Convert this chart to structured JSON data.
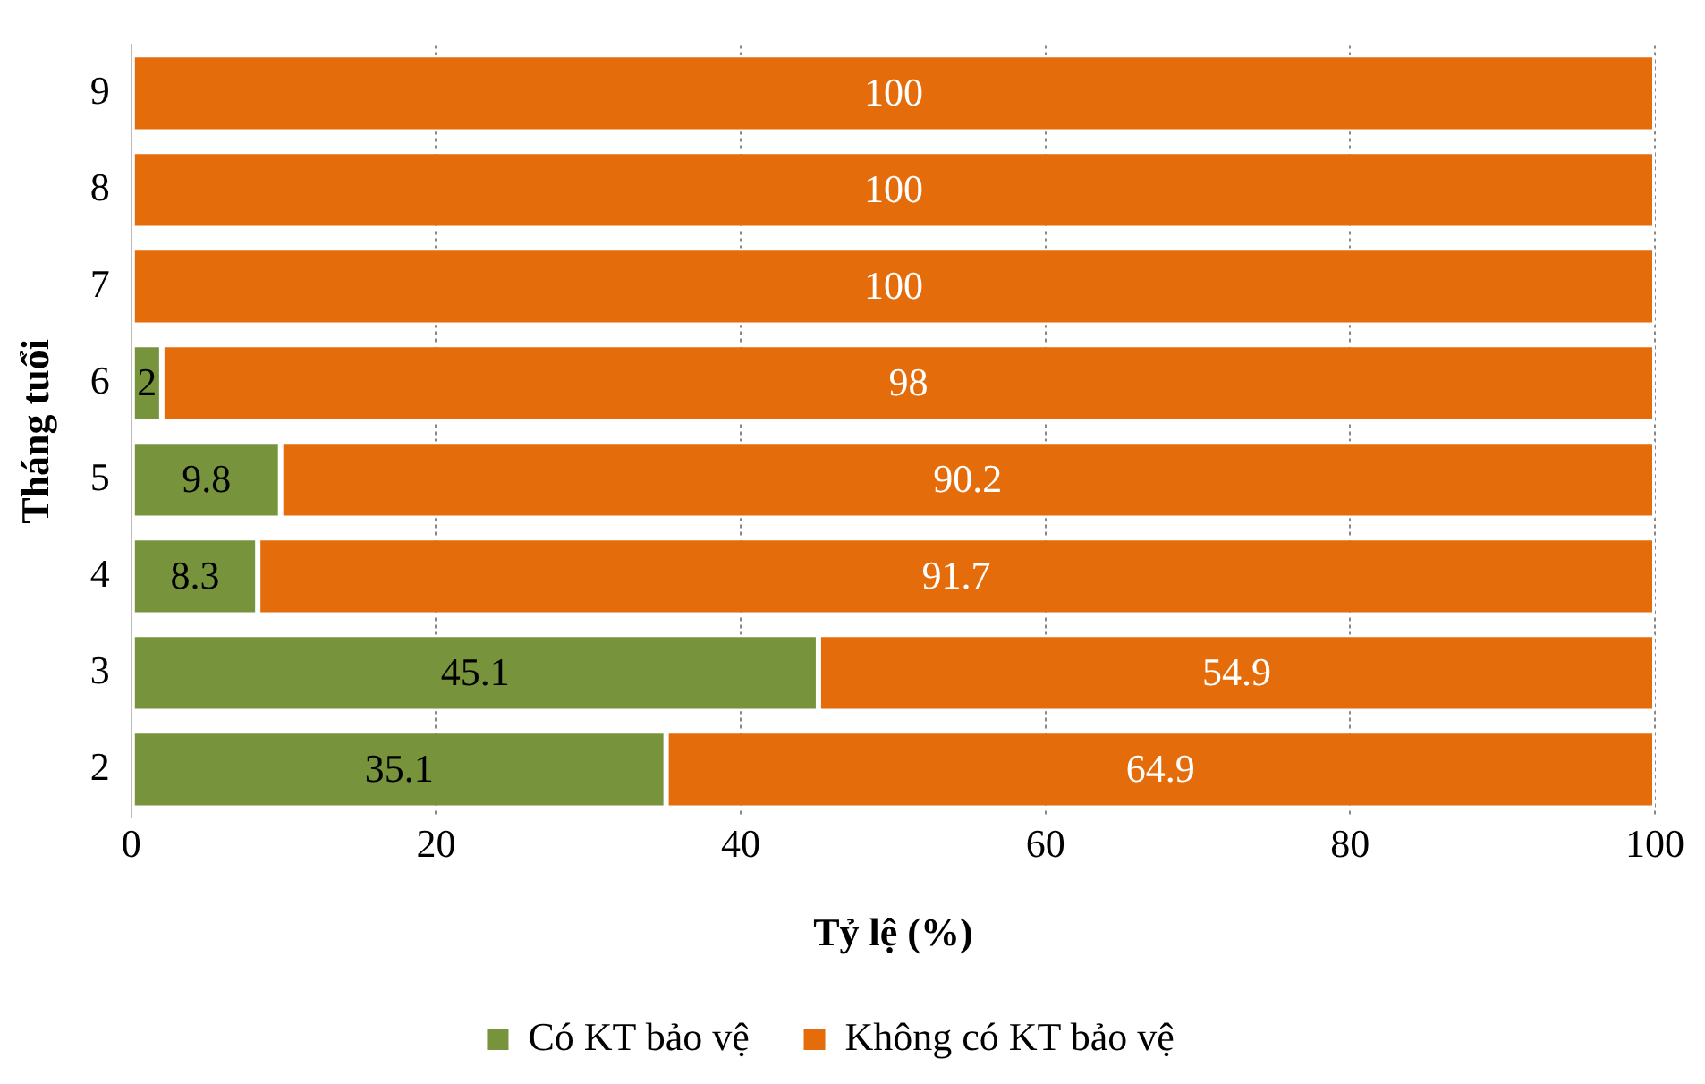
{
  "chart_data": {
    "type": "bar",
    "orientation": "horizontal",
    "stacked": true,
    "xlabel": "Tỷ lệ (%)",
    "ylabel": "Tháng tuổi",
    "categories": [
      "9",
      "8",
      "7",
      "6",
      "5",
      "4",
      "3",
      "2"
    ],
    "series": [
      {
        "name": "Có KT bảo vệ",
        "color": "#77933c",
        "values": [
          null,
          null,
          null,
          2,
          9.8,
          8.3,
          45.1,
          35.1
        ]
      },
      {
        "name": "Không có KT bảo vệ",
        "color": "#e46c0a",
        "values": [
          100,
          100,
          100,
          98,
          90.2,
          91.7,
          54.9,
          64.9
        ]
      }
    ],
    "xlim": [
      0,
      100
    ],
    "xticks": [
      0,
      20,
      40,
      60,
      80,
      100
    ],
    "grid": "x",
    "legend": "bottom",
    "data_labels": true
  }
}
